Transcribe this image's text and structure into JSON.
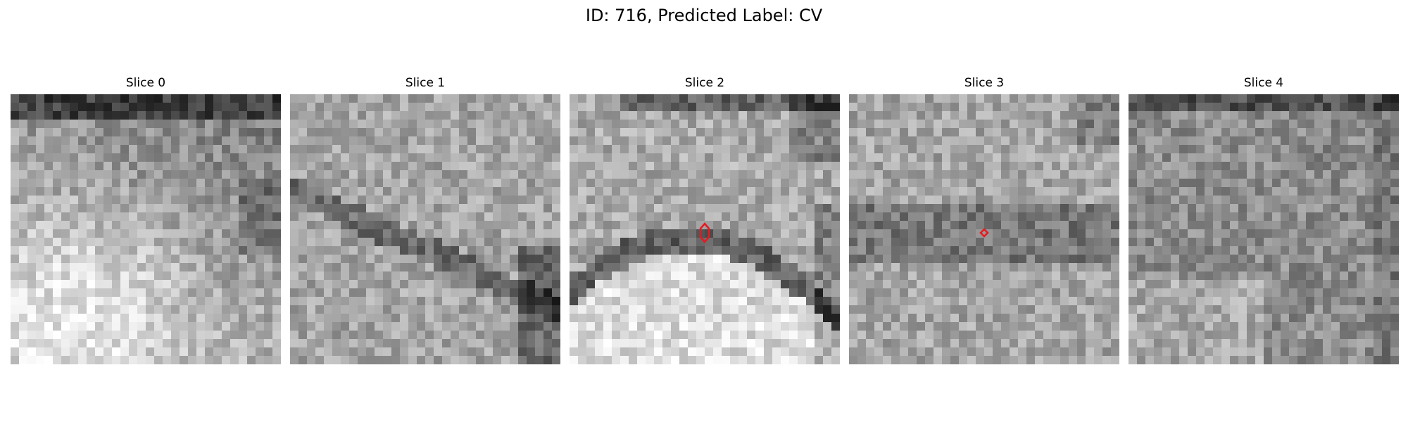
{
  "figure": {
    "suptitle": "ID: 716, Predicted Label: CV",
    "marker_color": "#e8191e",
    "panels": [
      {
        "title": "Slice 0"
      },
      {
        "title": "Slice 1"
      },
      {
        "title": "Slice 2"
      },
      {
        "title": "Slice 3"
      },
      {
        "title": "Slice 4"
      }
    ]
  }
}
